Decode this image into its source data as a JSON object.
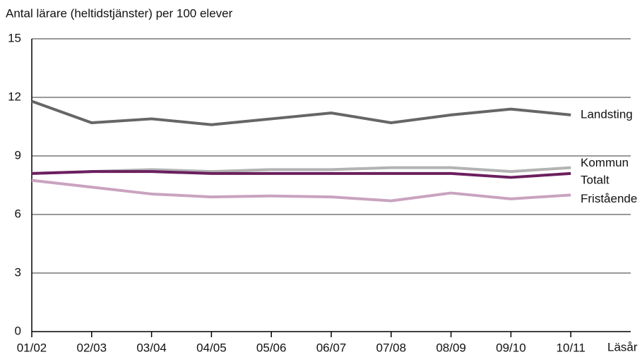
{
  "chart_data": {
    "type": "line",
    "title": "Antal lärare (heltidstjänster) per 100 elever",
    "x_label": "Läsår",
    "categories": [
      "01/02",
      "02/03",
      "03/04",
      "04/05",
      "05/06",
      "06/07",
      "07/08",
      "08/09",
      "09/10",
      "10/11"
    ],
    "series": [
      {
        "name": "Landsting",
        "color": "#666666",
        "values": [
          11.8,
          10.7,
          10.9,
          10.6,
          10.9,
          11.2,
          10.7,
          11.1,
          11.4,
          11.1
        ]
      },
      {
        "name": "Kommun",
        "color": "#b3b3b3",
        "values": [
          8.1,
          8.2,
          8.3,
          8.2,
          8.3,
          8.3,
          8.4,
          8.4,
          8.2,
          8.4
        ]
      },
      {
        "name": "Totalt",
        "color": "#6b1f5e",
        "values": [
          8.1,
          8.2,
          8.2,
          8.1,
          8.1,
          8.1,
          8.1,
          8.1,
          7.9,
          8.1
        ]
      },
      {
        "name": "Fristående",
        "color": "#c9a3c0",
        "values": [
          7.75,
          7.4,
          7.05,
          6.9,
          6.95,
          6.9,
          6.7,
          7.1,
          6.8,
          7.0
        ]
      }
    ],
    "ylim": [
      0,
      15
    ],
    "yticks": [
      0,
      3,
      6,
      9,
      12,
      15
    ],
    "grid": true
  }
}
